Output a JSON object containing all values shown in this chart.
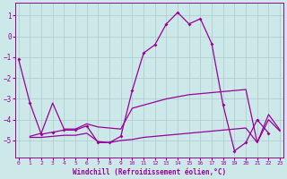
{
  "x": [
    0,
    1,
    2,
    3,
    4,
    5,
    6,
    7,
    8,
    9,
    10,
    11,
    12,
    13,
    14,
    15,
    16,
    17,
    18,
    19,
    20,
    21,
    22,
    23
  ],
  "line_marked": [
    -1.1,
    -3.2,
    -4.7,
    -4.6,
    -4.5,
    -4.5,
    -4.3,
    -5.1,
    -5.1,
    -4.8,
    -2.6,
    -0.8,
    -0.4,
    0.6,
    1.15,
    0.6,
    0.85,
    -0.35,
    -3.3,
    -5.5,
    -5.1,
    -4.0,
    -4.65,
    null
  ],
  "line_upper": [
    null,
    -4.8,
    -4.65,
    -3.2,
    -4.45,
    -4.45,
    -4.2,
    -4.35,
    -4.4,
    -4.45,
    -3.45,
    -3.3,
    -3.15,
    -3.0,
    -2.9,
    -2.8,
    -2.75,
    -2.7,
    -2.65,
    -2.6,
    -2.55,
    -5.1,
    -3.75,
    -4.5
  ],
  "line_lower": [
    null,
    -4.85,
    -4.85,
    -4.8,
    -4.75,
    -4.75,
    -4.65,
    -5.05,
    -5.1,
    -5.0,
    -4.95,
    -4.85,
    -4.8,
    -4.75,
    -4.7,
    -4.65,
    -4.6,
    -4.55,
    -4.5,
    -4.45,
    -4.4,
    -5.1,
    -4.0,
    -4.55
  ],
  "background_color": "#cce8e8",
  "grid_color": "#aacccc",
  "line_color": "#990099",
  "ylim": [
    -5.8,
    1.6
  ],
  "xlim": [
    -0.3,
    23.3
  ],
  "yticks": [
    1,
    0,
    -1,
    -2,
    -3,
    -4,
    -5
  ],
  "xticks": [
    0,
    1,
    2,
    3,
    4,
    5,
    6,
    7,
    8,
    9,
    10,
    11,
    12,
    13,
    14,
    15,
    16,
    17,
    18,
    19,
    20,
    21,
    22,
    23
  ],
  "xlabel": "Windchill (Refroidissement éolien,°C)",
  "markersize": 2.0,
  "linewidth": 0.9
}
